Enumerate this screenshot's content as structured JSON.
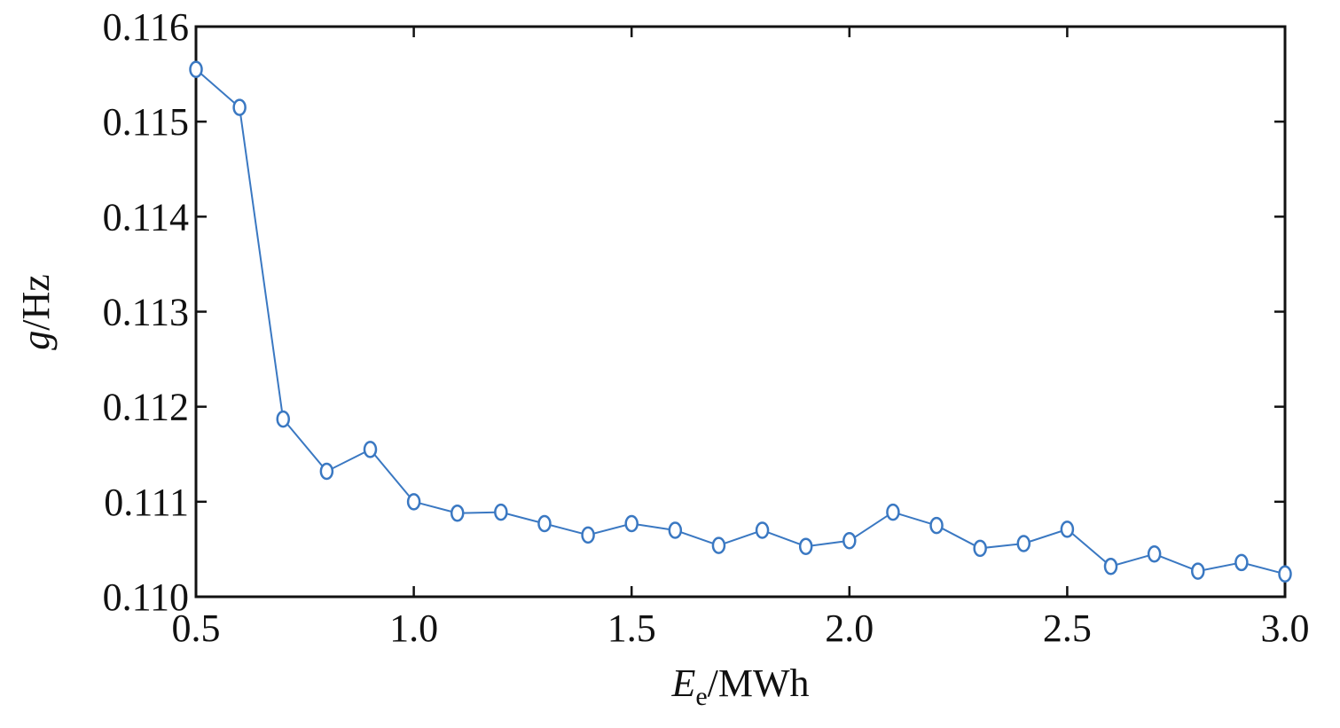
{
  "chart_data": {
    "type": "line",
    "title": "",
    "xlabel": {
      "symbol": "E",
      "subscript": "e",
      "unit": "/MWh"
    },
    "ylabel": {
      "symbol": "g",
      "unit": "/Hz"
    },
    "xlim": [
      0.5,
      3.0
    ],
    "ylim": [
      0.11,
      0.116
    ],
    "xticks": [
      0.5,
      1.0,
      1.5,
      2.0,
      2.5,
      3.0
    ],
    "xtick_labels": [
      "0.5",
      "1.0",
      "1.5",
      "2.0",
      "2.5",
      "3.0"
    ],
    "yticks": [
      0.11,
      0.111,
      0.112,
      0.113,
      0.114,
      0.115,
      0.116
    ],
    "ytick_labels": [
      "0.110",
      "0.111",
      "0.112",
      "0.113",
      "0.114",
      "0.115",
      "0.116"
    ],
    "grid": false,
    "marker": "circle",
    "line_color": "#3a78c2",
    "series": [
      {
        "x": [
          0.5,
          0.6,
          0.7,
          0.8,
          0.9,
          1.0,
          1.1,
          1.2,
          1.3,
          1.4,
          1.5,
          1.6,
          1.7,
          1.8,
          1.9,
          2.0,
          2.1,
          2.2,
          2.3,
          2.4,
          2.5,
          2.6,
          2.7,
          2.8,
          2.9,
          3.0
        ],
        "y": [
          0.11555,
          0.11515,
          0.11187,
          0.11132,
          0.11155,
          0.111,
          0.11088,
          0.11089,
          0.11077,
          0.11065,
          0.11077,
          0.1107,
          0.11054,
          0.1107,
          0.11053,
          0.11059,
          0.11089,
          0.11075,
          0.11051,
          0.11056,
          0.11071,
          0.11032,
          0.11045,
          0.11027,
          0.11036,
          0.11024
        ]
      }
    ]
  }
}
